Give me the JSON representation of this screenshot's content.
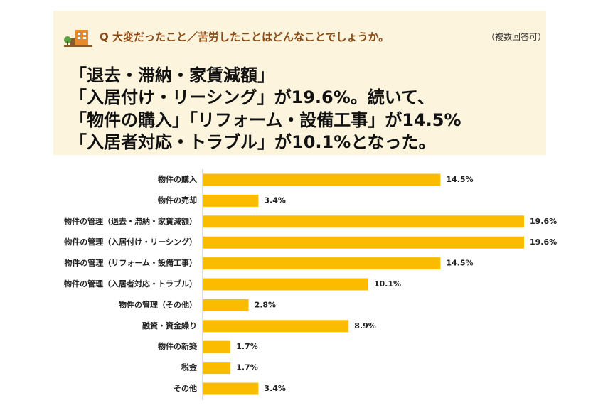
{
  "header": {
    "question": "Q 大変だったこと／苦労したことはどんなことでしょうか。",
    "note": "（複数回答可）",
    "headline": [
      "「退去・滞納・家賃減額」",
      "「入居付け・リーシング」が19.6%。続いて、",
      "「物件の購入」「リフォーム・設備工事」が14.5%",
      "「入居者対応・トラブル」が10.1%となった。"
    ]
  },
  "chart_data": {
    "type": "bar",
    "orientation": "horizontal",
    "color": "#fbbc00",
    "categories": [
      "物件の購入",
      "物件の売却",
      "物件の管理（退去・滞納・家賃減額）",
      "物件の管理（入居付け・リーシング）",
      "物件の管理（リフォーム・設備工事）",
      "物件の管理（入居者対応・トラブル）",
      "物件の管理（その他）",
      "融資・資金繰り",
      "物件の新築",
      "税金",
      "その他"
    ],
    "values": [
      14.5,
      3.4,
      19.6,
      19.6,
      14.5,
      10.1,
      2.8,
      8.9,
      1.7,
      1.7,
      3.4
    ],
    "value_labels": [
      "14.5%",
      "3.4%",
      "19.6%",
      "19.6%",
      "14.5%",
      "10.1%",
      "2.8%",
      "8.9%",
      "1.7%",
      "1.7%",
      "3.4%"
    ]
  }
}
